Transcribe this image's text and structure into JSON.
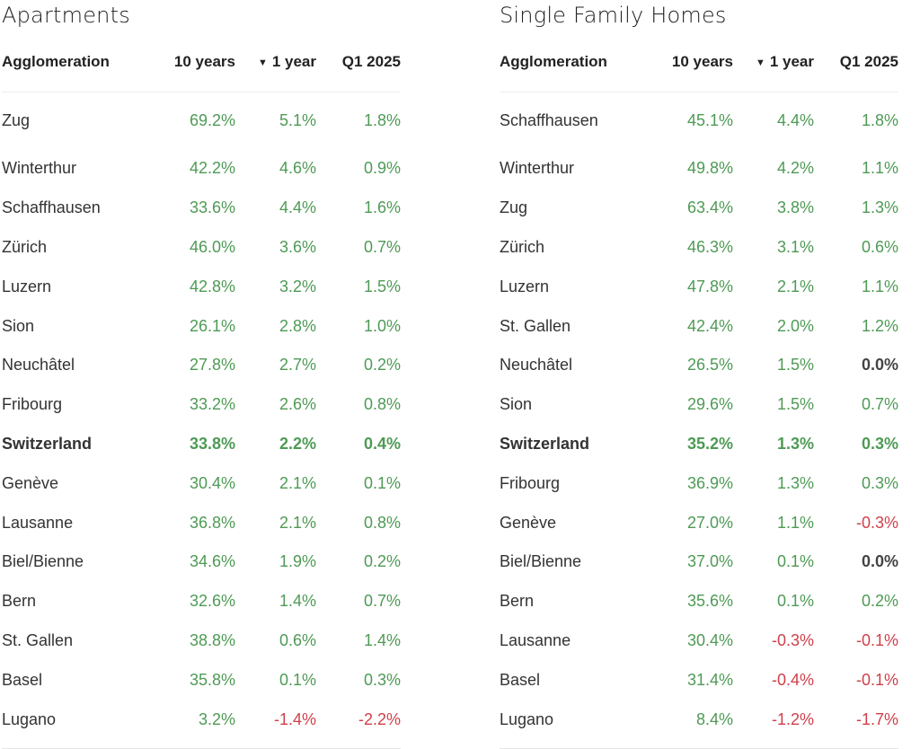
{
  "apartments": {
    "title": "Apartments",
    "headers": {
      "name": "Agglomeration",
      "ten_years": "10 years",
      "one_year": "1 year",
      "quarter": "Q1 2025"
    },
    "sorted_column_icon": "triangle-down-icon",
    "rows": [
      {
        "name": "Zug",
        "ten_years": "69.2%",
        "one_year": "5.1%",
        "quarter": "1.8%"
      },
      {
        "name": "Winterthur",
        "ten_years": "42.2%",
        "one_year": "4.6%",
        "quarter": "0.9%"
      },
      {
        "name": "Schaffhausen",
        "ten_years": "33.6%",
        "one_year": "4.4%",
        "quarter": "1.6%"
      },
      {
        "name": "Zürich",
        "ten_years": "46.0%",
        "one_year": "3.6%",
        "quarter": "0.7%"
      },
      {
        "name": "Luzern",
        "ten_years": "42.8%",
        "one_year": "3.2%",
        "quarter": "1.5%"
      },
      {
        "name": "Sion",
        "ten_years": "26.1%",
        "one_year": "2.8%",
        "quarter": "1.0%"
      },
      {
        "name": "Neuchâtel",
        "ten_years": "27.8%",
        "one_year": "2.7%",
        "quarter": "0.2%"
      },
      {
        "name": "Fribourg",
        "ten_years": "33.2%",
        "one_year": "2.6%",
        "quarter": "0.8%"
      },
      {
        "name": "Switzerland",
        "ten_years": "33.8%",
        "one_year": "2.2%",
        "quarter": "0.4%",
        "bold": true
      },
      {
        "name": "Genève",
        "ten_years": "30.4%",
        "one_year": "2.1%",
        "quarter": "0.1%"
      },
      {
        "name": "Lausanne",
        "ten_years": "36.8%",
        "one_year": "2.1%",
        "quarter": "0.8%"
      },
      {
        "name": "Biel/Bienne",
        "ten_years": "34.6%",
        "one_year": "1.9%",
        "quarter": "0.2%"
      },
      {
        "name": "Bern",
        "ten_years": "32.6%",
        "one_year": "1.4%",
        "quarter": "0.7%"
      },
      {
        "name": "St. Gallen",
        "ten_years": "38.8%",
        "one_year": "0.6%",
        "quarter": "1.4%"
      },
      {
        "name": "Basel",
        "ten_years": "35.8%",
        "one_year": "0.1%",
        "quarter": "0.3%"
      },
      {
        "name": "Lugano",
        "ten_years": "3.2%",
        "one_year": "-1.4%",
        "quarter": "-2.2%"
      }
    ]
  },
  "single_family_homes": {
    "title": "Single Family Homes",
    "headers": {
      "name": "Agglomeration",
      "ten_years": "10 years",
      "one_year": "1 year",
      "quarter": "Q1 2025"
    },
    "sorted_column_icon": "triangle-down-icon",
    "rows": [
      {
        "name": "Schaffhausen",
        "ten_years": "45.1%",
        "one_year": "4.4%",
        "quarter": "1.8%"
      },
      {
        "name": "Winterthur",
        "ten_years": "49.8%",
        "one_year": "4.2%",
        "quarter": "1.1%"
      },
      {
        "name": "Zug",
        "ten_years": "63.4%",
        "one_year": "3.8%",
        "quarter": "1.3%"
      },
      {
        "name": "Zürich",
        "ten_years": "46.3%",
        "one_year": "3.1%",
        "quarter": "0.6%"
      },
      {
        "name": "Luzern",
        "ten_years": "47.8%",
        "one_year": "2.1%",
        "quarter": "1.1%"
      },
      {
        "name": "St. Gallen",
        "ten_years": "42.4%",
        "one_year": "2.0%",
        "quarter": "1.2%"
      },
      {
        "name": "Neuchâtel",
        "ten_years": "26.5%",
        "one_year": "1.5%",
        "quarter": "0.0%"
      },
      {
        "name": "Sion",
        "ten_years": "29.6%",
        "one_year": "1.5%",
        "quarter": "0.7%"
      },
      {
        "name": "Switzerland",
        "ten_years": "35.2%",
        "one_year": "1.3%",
        "quarter": "0.3%",
        "bold": true
      },
      {
        "name": "Fribourg",
        "ten_years": "36.9%",
        "one_year": "1.3%",
        "quarter": "0.3%"
      },
      {
        "name": "Genève",
        "ten_years": "27.0%",
        "one_year": "1.1%",
        "quarter": "-0.3%"
      },
      {
        "name": "Biel/Bienne",
        "ten_years": "37.0%",
        "one_year": "0.1%",
        "quarter": "0.0%"
      },
      {
        "name": "Bern",
        "ten_years": "35.6%",
        "one_year": "0.1%",
        "quarter": "0.2%"
      },
      {
        "name": "Lausanne",
        "ten_years": "30.4%",
        "one_year": "-0.3%",
        "quarter": "-0.1%"
      },
      {
        "name": "Basel",
        "ten_years": "31.4%",
        "one_year": "-0.4%",
        "quarter": "-0.1%"
      },
      {
        "name": "Lugano",
        "ten_years": "8.4%",
        "one_year": "-1.2%",
        "quarter": "-1.7%"
      }
    ]
  },
  "colors": {
    "positive": "#4e9a55",
    "negative": "#d0404a",
    "zero": "#444444",
    "text": "#333333"
  }
}
